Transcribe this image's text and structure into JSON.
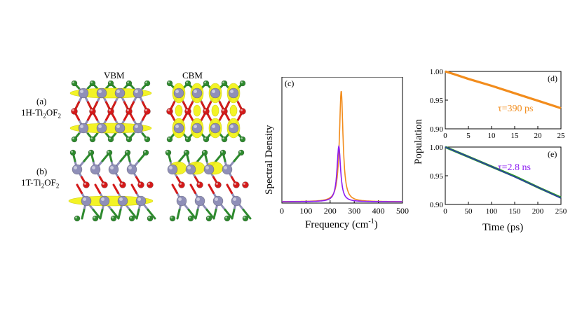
{
  "structures": {
    "col_vbm": "VBM",
    "col_cbm": "CBM",
    "row_a_letter": "(a)",
    "row_a_formula": "1H-Ti",
    "row_a_sub1": "2",
    "row_a_mid": "OF",
    "row_a_sub2": "2",
    "row_b_letter": "(b)",
    "row_b_formula": "1T-Ti",
    "row_b_sub1": "2",
    "row_b_mid": "OF",
    "row_b_sub2": "2"
  },
  "colors": {
    "ti_atom": "#8f8fb8",
    "o_atom": "#d41a1a",
    "f_atom": "#2e8a2e",
    "density": "#f2f20f",
    "orange": "#f28c1c",
    "purple": "#8c1cf2",
    "green": "#2c9a2c",
    "blue": "#2c3aa8"
  },
  "chart_data": [
    {
      "id": "c",
      "type": "line",
      "panel_label": "(c)",
      "xlabel": "Frequency (cm",
      "xlabel_sup": "-1",
      "xlabel_end": ")",
      "ylabel": "Spectral Density",
      "xlim": [
        0,
        500
      ],
      "xticks": [
        "0",
        "100",
        "200",
        "300",
        "400",
        "500"
      ],
      "yticks_shown": false,
      "series": [
        {
          "color": "orange",
          "peak_center": 246,
          "peak_height": 1.0,
          "width": 9
        },
        {
          "color": "purple",
          "peak_center": 236,
          "peak_height": 0.5,
          "width": 9
        }
      ]
    },
    {
      "id": "d",
      "type": "line",
      "panel_label": "(d)",
      "annotation": "τ=390 ps",
      "xlim": [
        0,
        25
      ],
      "ylim": [
        0.9,
        1.0
      ],
      "xticks": [
        "0",
        "5",
        "10",
        "15",
        "20",
        "25"
      ],
      "yticks": [
        "0.90",
        "0.95",
        "1.00"
      ],
      "series": [
        {
          "color": "orange",
          "x": [
            0,
            2,
            5,
            10,
            15,
            20,
            25
          ],
          "y": [
            1.0,
            0.995,
            0.987,
            0.975,
            0.962,
            0.949,
            0.936
          ]
        }
      ]
    },
    {
      "id": "e",
      "type": "line",
      "panel_label": "(e)",
      "annotation": "τ=2.8 ns",
      "xlim": [
        0,
        250
      ],
      "ylim": [
        0.9,
        1.0
      ],
      "xticks": [
        "0",
        "50",
        "100",
        "150",
        "200",
        "250"
      ],
      "yticks": [
        "0.90",
        "0.95",
        "1.00"
      ],
      "xlabel": "Time (ps)",
      "series": [
        {
          "color": "green",
          "x": [
            0,
            50,
            100,
            150,
            200,
            250
          ],
          "y": [
            1.0,
            0.983,
            0.966,
            0.949,
            0.93,
            0.912
          ]
        },
        {
          "color": "blue",
          "x": [
            0,
            50,
            100,
            150,
            200,
            250
          ],
          "y": [
            1.0,
            0.983,
            0.966,
            0.948,
            0.93,
            0.911
          ]
        }
      ]
    }
  ],
  "shared_ylabel": "Population"
}
